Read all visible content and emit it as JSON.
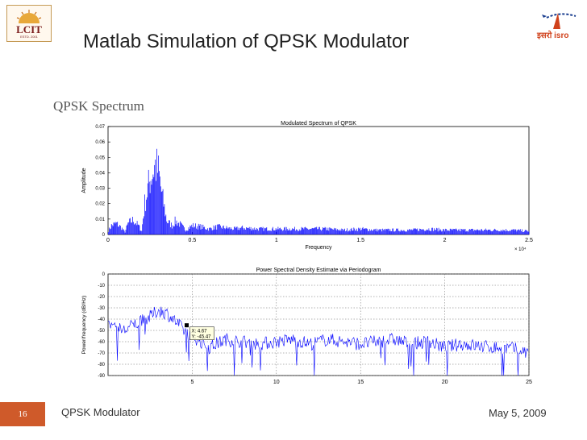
{
  "header": {
    "logo_left_text": "LCIT",
    "logo_left_sub": "ESTD. 2001",
    "logo_right_text": "इसरो isro",
    "title": "Matlab Simulation of QPSK Modulator"
  },
  "section_title": "QPSK Spectrum",
  "footer": {
    "slide_number": "16",
    "left_text": "QPSK Modulator",
    "date": "May 5, 2009"
  },
  "colors": {
    "signal": "#0000ff",
    "footer_accent": "#cf5a2a"
  },
  "chart_data": [
    {
      "type": "bar",
      "title": "Modulated Spectrum of QPSK",
      "xlabel": "Frequency",
      "ylabel": "Amplitude",
      "x_multiplier": "× 10⁴",
      "xlim": [
        0,
        2.5
      ],
      "ylim": [
        0,
        0.07
      ],
      "xticks": [
        0,
        0.5,
        1,
        1.5,
        2,
        2.5
      ],
      "xtick_labels": [
        "0",
        "0.5",
        "1",
        "1.5",
        "2",
        "2.5"
      ],
      "yticks": [
        0,
        0.01,
        0.02,
        0.03,
        0.04,
        0.05,
        0.06,
        0.07
      ],
      "ytick_labels": [
        "0",
        "0.01",
        "0.02",
        "0.03",
        "0.04",
        "0.05",
        "0.06",
        "0.07"
      ],
      "grid": false,
      "envelope": {
        "x": [
          0,
          0.02,
          0.05,
          0.08,
          0.1,
          0.12,
          0.15,
          0.18,
          0.2,
          0.22,
          0.25,
          0.28,
          0.3,
          0.32,
          0.35,
          0.38,
          0.4,
          0.43,
          0.46,
          0.5,
          0.55,
          0.6,
          0.65,
          0.7,
          0.75,
          0.8,
          0.9,
          1.0,
          1.1,
          1.2,
          1.3,
          1.4,
          1.5,
          1.6,
          1.7,
          1.8,
          1.9,
          2.0,
          2.1,
          2.2,
          2.3,
          2.4,
          2.5
        ],
        "y": [
          0.003,
          0.008,
          0.01,
          0.006,
          0.002,
          0.01,
          0.013,
          0.008,
          0.003,
          0.03,
          0.05,
          0.062,
          0.055,
          0.035,
          0.012,
          0.008,
          0.012,
          0.009,
          0.004,
          0.008,
          0.007,
          0.005,
          0.007,
          0.006,
          0.005,
          0.006,
          0.005,
          0.005,
          0.005,
          0.005,
          0.005,
          0.004,
          0.005,
          0.004,
          0.004,
          0.004,
          0.005,
          0.004,
          0.004,
          0.004,
          0.004,
          0.004,
          0.003
        ]
      }
    },
    {
      "type": "line",
      "title": "Power Spectral Density Estimate via Periodogram",
      "xlabel": "",
      "ylabel": "Power/frequency (dB/Hz)",
      "xlim": [
        0,
        25
      ],
      "ylim": [
        -90,
        0
      ],
      "xticks": [
        5,
        10,
        15,
        20,
        25
      ],
      "xtick_labels": [
        "5",
        "10",
        "15",
        "20",
        "25"
      ],
      "yticks": [
        0,
        -10,
        -20,
        -30,
        -40,
        -50,
        -60,
        -70,
        -80,
        -90
      ],
      "ytick_labels": [
        "0",
        "-10",
        "-20",
        "-30",
        "-40",
        "-50",
        "-60",
        "-70",
        "-80",
        "-90"
      ],
      "grid": true,
      "datatip": {
        "x": 4.67,
        "y": -45.47,
        "x_label": "X: 4.67",
        "y_label": "Y: -45.47"
      },
      "series": [
        {
          "x": [
            0,
            0.5,
            1,
            1.5,
            2,
            2.5,
            3,
            3.5,
            4,
            4.5,
            5,
            5.5,
            6,
            7,
            8,
            9,
            10,
            11,
            12,
            13,
            14,
            15,
            16,
            17,
            18,
            19,
            20,
            21,
            22,
            23,
            24,
            25
          ],
          "y": [
            -45,
            -48,
            -50,
            -45,
            -42,
            -38,
            -32,
            -35,
            -42,
            -50,
            -55,
            -60,
            -65,
            -58,
            -60,
            -62,
            -60,
            -58,
            -62,
            -58,
            -60,
            -62,
            -60,
            -58,
            -62,
            -60,
            -65,
            -62,
            -64,
            -65,
            -66,
            -70
          ]
        }
      ]
    }
  ]
}
